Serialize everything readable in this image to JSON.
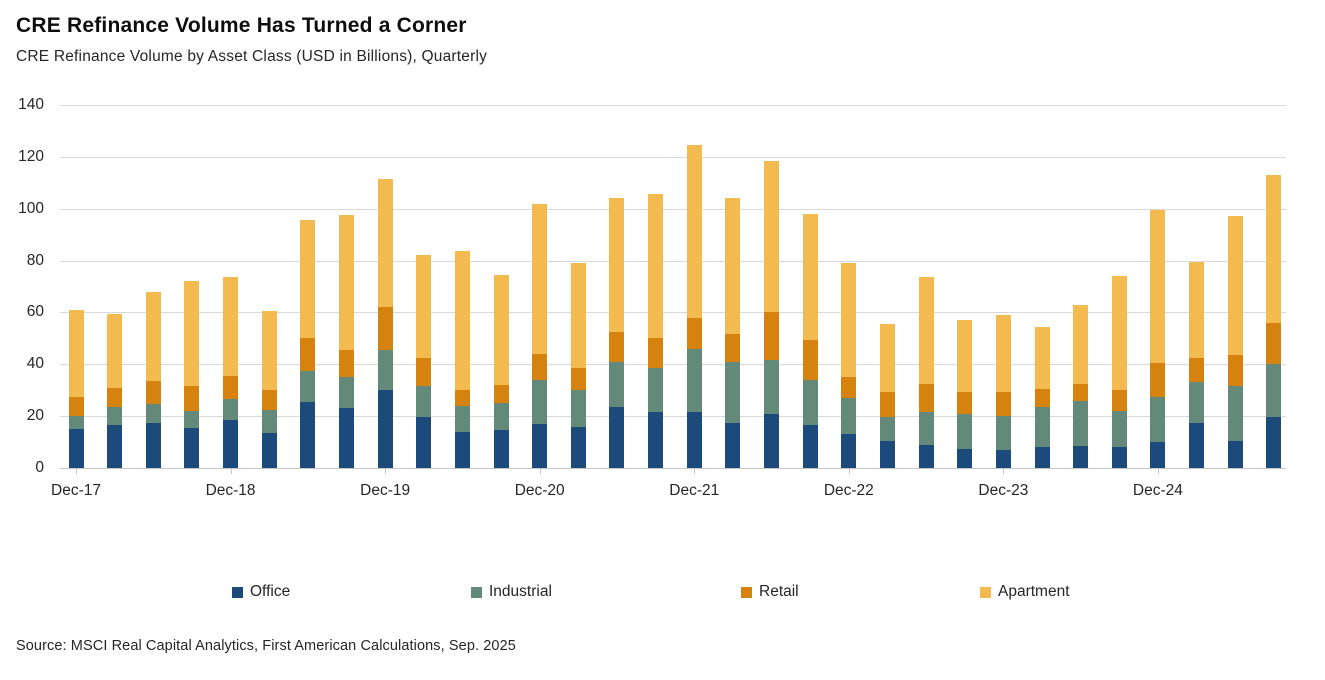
{
  "title": "CRE Refinance Volume Has Turned a Corner",
  "subtitle": "CRE Refinance Volume by Asset Class (USD in Billions), Quarterly",
  "source": "Source: MSCI Real Capital Analytics, First American Calculations, Sep. 2025",
  "colors": {
    "office": "#1B4A7B",
    "industrial": "#62897A",
    "retail": "#D6820E",
    "apartment": "#F2BA4F",
    "gridline": "#D9D9D9",
    "axis_text": "#262626"
  },
  "chart_data": {
    "type": "bar",
    "stacked": true,
    "title": "CRE Refinance Volume Has Turned a Corner",
    "subtitle": "CRE Refinance Volume by Asset Class (USD in Billions), Quarterly",
    "unit": "USD in Billions",
    "frequency": "Quarterly",
    "grid": "horizontal",
    "legend_position": "bottom",
    "ylim": [
      0,
      140
    ],
    "yticks": [
      0,
      20,
      40,
      60,
      80,
      100,
      120,
      140
    ],
    "x_tick_labels": [
      "Dec-17",
      "Dec-18",
      "Dec-19",
      "Dec-20",
      "Dec-21",
      "Dec-22",
      "Dec-23",
      "Dec-24"
    ],
    "x_tick_every": 4,
    "categories": [
      "Dec-17",
      "Mar-18",
      "Jun-18",
      "Sep-18",
      "Dec-18",
      "Mar-19",
      "Jun-19",
      "Sep-19",
      "Dec-19",
      "Mar-20",
      "Jun-20",
      "Sep-20",
      "Dec-20",
      "Mar-21",
      "Jun-21",
      "Sep-21",
      "Dec-21",
      "Mar-22",
      "Jun-22",
      "Sep-22",
      "Dec-22",
      "Mar-23",
      "Jun-23",
      "Sep-23",
      "Dec-23",
      "Mar-24",
      "Jun-24",
      "Sep-24",
      "Dec-24",
      "Mar-25",
      "Jun-25",
      "Sep-25"
    ],
    "series": [
      {
        "name": "Office",
        "color": "#1B4A7B",
        "values": [
          15,
          16.5,
          17.5,
          15.5,
          18.5,
          13.5,
          25.5,
          23,
          30,
          19.5,
          14,
          14.5,
          17,
          16,
          23.5,
          21.5,
          21.5,
          17.5,
          21,
          16.5,
          13,
          10.5,
          9,
          7.5,
          7,
          8,
          8.5,
          8,
          10,
          17.5,
          10.5,
          19.5
        ]
      },
      {
        "name": "Industrial",
        "color": "#62897A",
        "values": [
          5,
          7,
          7,
          6.5,
          8,
          9,
          12,
          12,
          15.5,
          12,
          10,
          10.5,
          17,
          14,
          17.5,
          17,
          24.5,
          23.5,
          20.5,
          17.5,
          14,
          9,
          12.5,
          13.5,
          13,
          15.5,
          17.5,
          14,
          17.5,
          15.5,
          21,
          20.5
        ]
      },
      {
        "name": "Retail",
        "color": "#D6820E",
        "values": [
          7.5,
          7.5,
          9,
          9.5,
          9,
          7.5,
          12.5,
          10.5,
          16.5,
          11,
          6,
          7,
          10,
          8.5,
          11.5,
          11.5,
          12,
          10.5,
          18.5,
          15.5,
          8,
          10,
          11,
          8.5,
          9.5,
          7,
          6.5,
          8,
          13,
          9.5,
          12,
          16
        ]
      },
      {
        "name": "Apartment",
        "color": "#F2BA4F",
        "values": [
          33.5,
          28.5,
          34.5,
          40.5,
          38,
          30.5,
          45.5,
          52,
          49.5,
          39.5,
          53.5,
          42.5,
          58,
          40.5,
          51.5,
          55.5,
          66.5,
          52.5,
          58.5,
          48.5,
          44,
          26,
          41,
          27.5,
          29.5,
          24,
          30.5,
          44,
          59,
          37,
          53.5,
          57
        ]
      }
    ]
  }
}
